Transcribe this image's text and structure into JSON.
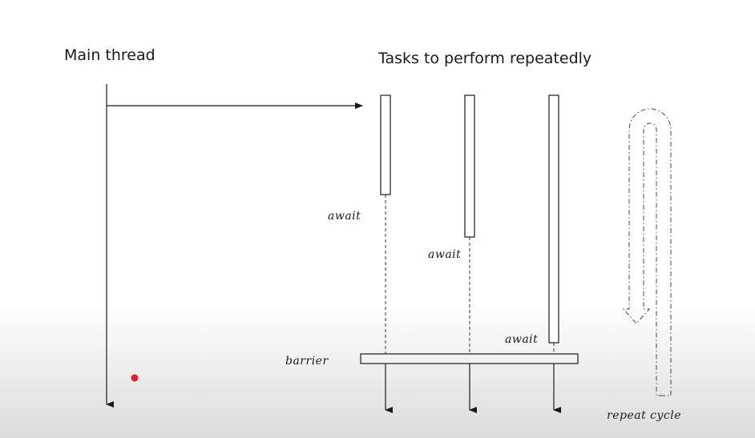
{
  "titles": {
    "main_thread": "Main thread",
    "tasks": "Tasks to perform repeatedly"
  },
  "labels": {
    "await_1": "await",
    "await_2": "await",
    "await_3": "await",
    "barrier": "barrier",
    "repeat_cycle": "repeat cycle"
  },
  "colors": {
    "stroke": "#1a1a1a",
    "pointer_dot": "#e0202e"
  }
}
